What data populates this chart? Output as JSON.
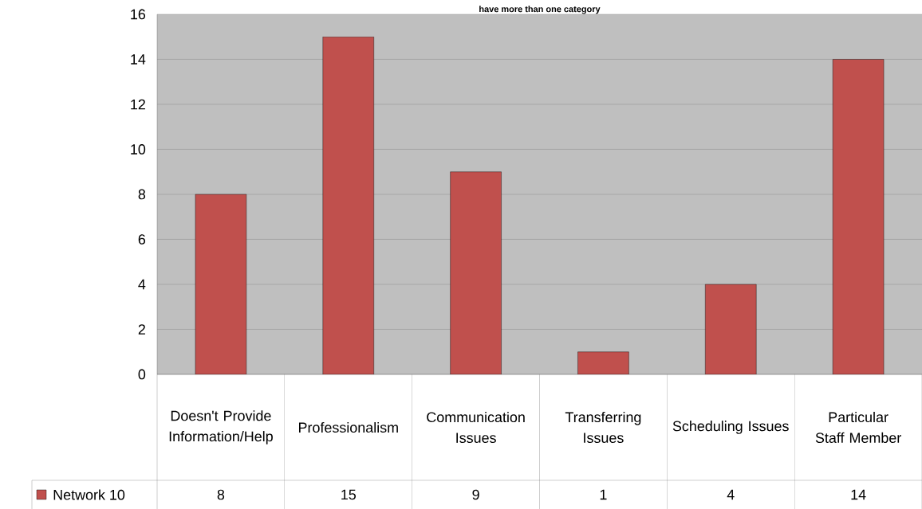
{
  "chart_data": {
    "type": "bar",
    "title": "have more than one category",
    "categories": [
      "Doesn't Provide Information/Help",
      "Professionalism",
      "Communication Issues",
      "Transferring Issues",
      "Scheduling Issues",
      "Particular Staff Member"
    ],
    "series": [
      {
        "name": "Network 10",
        "color": "#c0504d",
        "values": [
          8,
          15,
          9,
          1,
          4,
          14
        ]
      }
    ],
    "ylim": [
      0,
      16
    ],
    "yticks": [
      0,
      2,
      4,
      6,
      8,
      10,
      12,
      14,
      16
    ],
    "grid": "y",
    "legend": "bottom left",
    "data_labels": true
  }
}
